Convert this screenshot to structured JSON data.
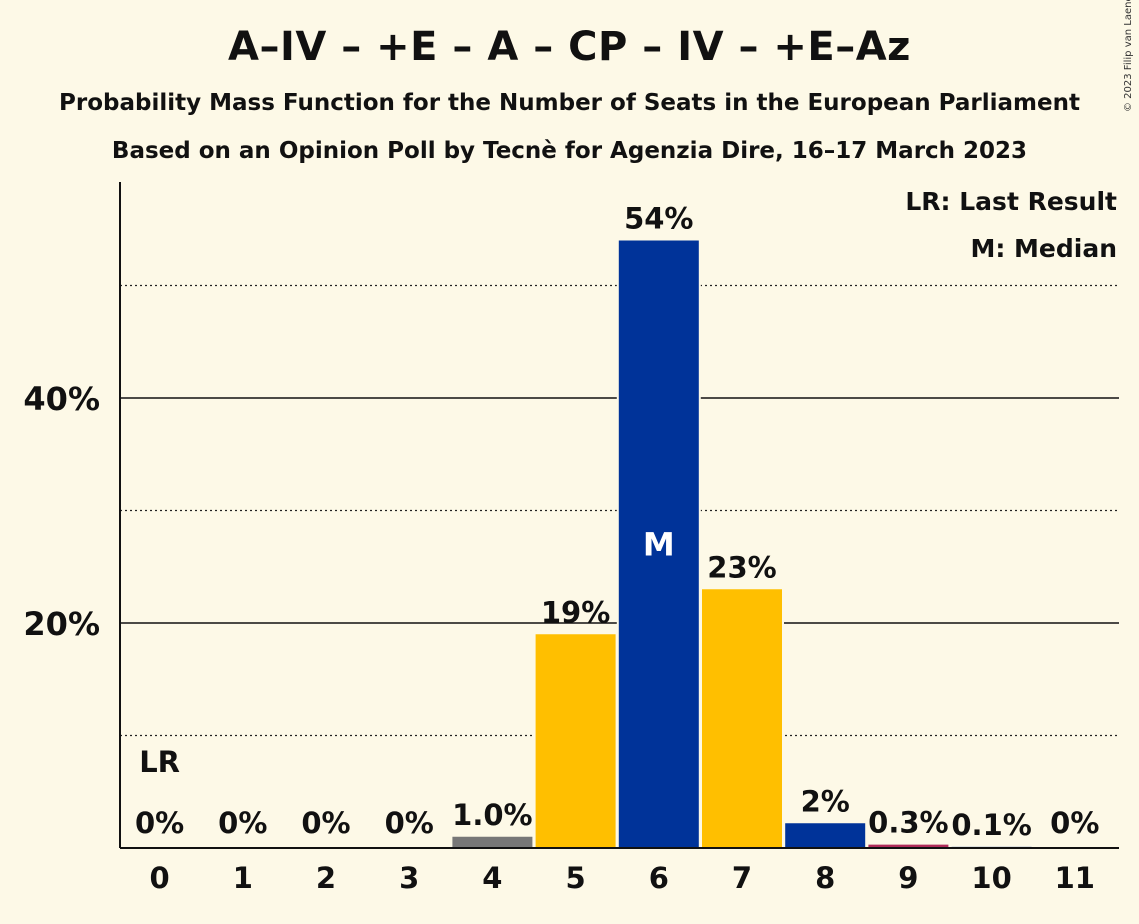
{
  "header": {
    "title": "A–IV – +E – A – CP – IV – +E–Az",
    "subtitle": "Probability Mass Function for the Number of Seats in the European Parliament",
    "subtitle2": "Based on an Opinion Poll by Tecnè for Agenzia Dire, 16–17 March 2023",
    "copyright": "© 2023 Filip van Laenen"
  },
  "chart_data": {
    "type": "bar",
    "categories": [
      "0",
      "1",
      "2",
      "3",
      "4",
      "5",
      "6",
      "7",
      "8",
      "9",
      "10",
      "11"
    ],
    "values": [
      0,
      0,
      0,
      0,
      1.0,
      19,
      54,
      23,
      2.2,
      0.3,
      0.1,
      0
    ],
    "value_labels": [
      "0%",
      "0%",
      "0%",
      "0%",
      "1.0%",
      "19%",
      "54%",
      "23%",
      "2%",
      "0.3%",
      "0.1%",
      "0%"
    ],
    "bar_colors": [
      "#777777",
      "#777777",
      "#777777",
      "#777777",
      "#777777",
      "#FFBF00",
      "#003399",
      "#FFBF00",
      "#003399",
      "#b02c5a",
      "#003399",
      "#777777"
    ],
    "ylim": [
      0,
      58
    ],
    "y_ticks": [
      {
        "value": 20,
        "label": "20%"
      },
      {
        "value": 40,
        "label": "40%"
      }
    ],
    "minor_gridlines": [
      10,
      30,
      50
    ],
    "median_index": 6,
    "median_marker": "M",
    "last_result_index": 0,
    "last_result_marker": "LR",
    "legend": [
      "LR: Last Result",
      "M: Median"
    ],
    "legend_position": "top-right",
    "grid": true
  }
}
